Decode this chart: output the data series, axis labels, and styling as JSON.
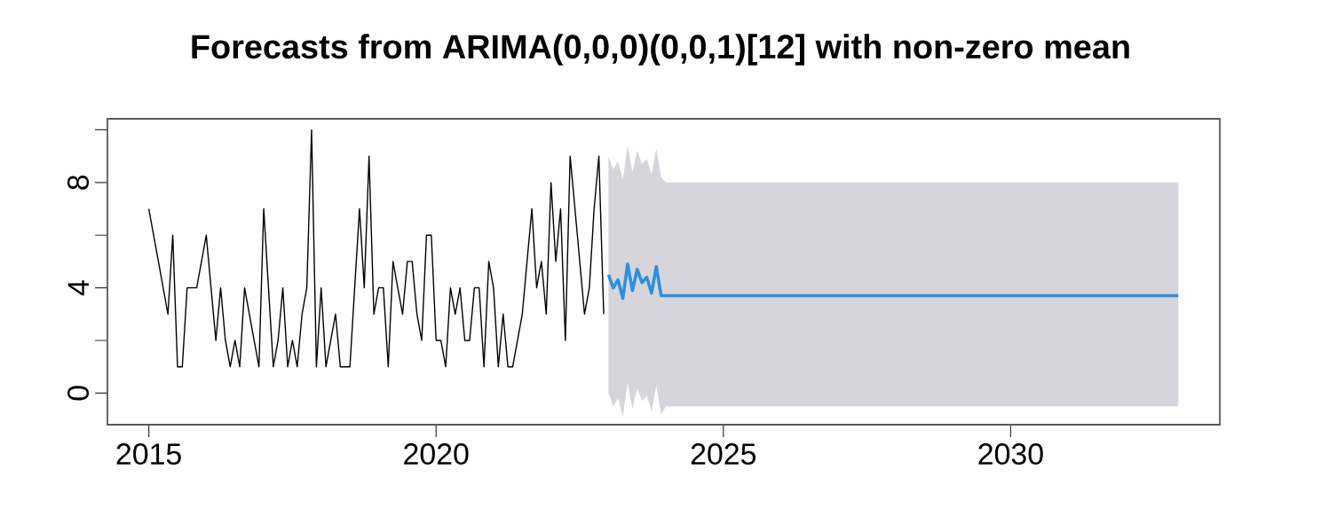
{
  "chart_data": {
    "type": "line",
    "title": "Forecasts from ARIMA(0,0,0)(0,0,1)[12] with non-zero mean",
    "xlim": [
      2014.28,
      2033.64
    ],
    "ylim": [
      -1.2,
      10.42
    ],
    "xticks": [
      2015,
      2020,
      2025,
      2030
    ],
    "yticks": [
      0,
      {
        "value": 2,
        "label": null
      },
      4,
      {
        "value": 6,
        "label": null
      },
      8,
      {
        "value": 10,
        "label": null
      }
    ],
    "grid": false,
    "marker": "none",
    "series": [
      {
        "color": "#000000",
        "x": [
          2015.0,
          2015.083,
          2015.167,
          2015.25,
          2015.333,
          2015.417,
          2015.5,
          2015.583,
          2015.667,
          2015.75,
          2015.833,
          2015.917,
          2016.0,
          2016.083,
          2016.167,
          2016.25,
          2016.333,
          2016.417,
          2016.5,
          2016.583,
          2016.667,
          2016.75,
          2016.833,
          2016.917,
          2017.0,
          2017.083,
          2017.167,
          2017.25,
          2017.333,
          2017.417,
          2017.5,
          2017.583,
          2017.667,
          2017.75,
          2017.833,
          2017.917,
          2018.0,
          2018.083,
          2018.167,
          2018.25,
          2018.333,
          2018.417,
          2018.5,
          2018.583,
          2018.667,
          2018.75,
          2018.833,
          2018.917,
          2019.0,
          2019.083,
          2019.167,
          2019.25,
          2019.333,
          2019.417,
          2019.5,
          2019.583,
          2019.667,
          2019.75,
          2019.833,
          2019.917,
          2020.0,
          2020.083,
          2020.167,
          2020.25,
          2020.333,
          2020.417,
          2020.5,
          2020.583,
          2020.667,
          2020.75,
          2020.833,
          2020.917,
          2021.0,
          2021.083,
          2021.167,
          2021.25,
          2021.333,
          2021.417,
          2021.5,
          2021.583,
          2021.667,
          2021.75,
          2021.833,
          2021.917,
          2022.0,
          2022.083,
          2022.167,
          2022.25,
          2022.333,
          2022.417,
          2022.5,
          2022.583,
          2022.667,
          2022.75,
          2022.833,
          2022.917
        ],
        "values": [
          7,
          6,
          5,
          4,
          3,
          6,
          1,
          1,
          4,
          4,
          4,
          5,
          6,
          4,
          2,
          4,
          2,
          1,
          2,
          1,
          4,
          3,
          2,
          1,
          7,
          4,
          1,
          2,
          4,
          1,
          2,
          1,
          3,
          4,
          10,
          1,
          4,
          1,
          2,
          3,
          1,
          1,
          1,
          4,
          7,
          4,
          9,
          3,
          4,
          4,
          1,
          5,
          4,
          3,
          5,
          5,
          3,
          2,
          6,
          6,
          2,
          2,
          1,
          4,
          3,
          4,
          2,
          2,
          4,
          4,
          1,
          5,
          4,
          1,
          3,
          1,
          1,
          2,
          3,
          5,
          7,
          4,
          5,
          3,
          8,
          5,
          7,
          2,
          9,
          7,
          5,
          3,
          4,
          7,
          9,
          3
        ]
      },
      {
        "color": "#2e8fdf",
        "x": [
          2023.0,
          2023.083,
          2023.167,
          2023.25,
          2023.333,
          2023.417,
          2023.5,
          2023.583,
          2023.667,
          2023.75,
          2023.833,
          2023.917,
          2024.0,
          2032.917
        ],
        "values": [
          4.5,
          4.0,
          4.3,
          3.6,
          4.9,
          3.9,
          4.7,
          4.2,
          4.4,
          3.8,
          4.8,
          3.7,
          3.7,
          3.7
        ],
        "lower": [
          0.0,
          -0.5,
          -0.2,
          -0.9,
          0.4,
          -0.6,
          0.2,
          -0.3,
          -0.1,
          -0.7,
          0.3,
          -0.8,
          -0.5,
          -0.5
        ],
        "upper": [
          9.0,
          8.5,
          8.8,
          8.1,
          9.4,
          8.4,
          9.2,
          8.7,
          8.9,
          8.3,
          9.3,
          8.2,
          8.0,
          8.0
        ]
      }
    ]
  }
}
